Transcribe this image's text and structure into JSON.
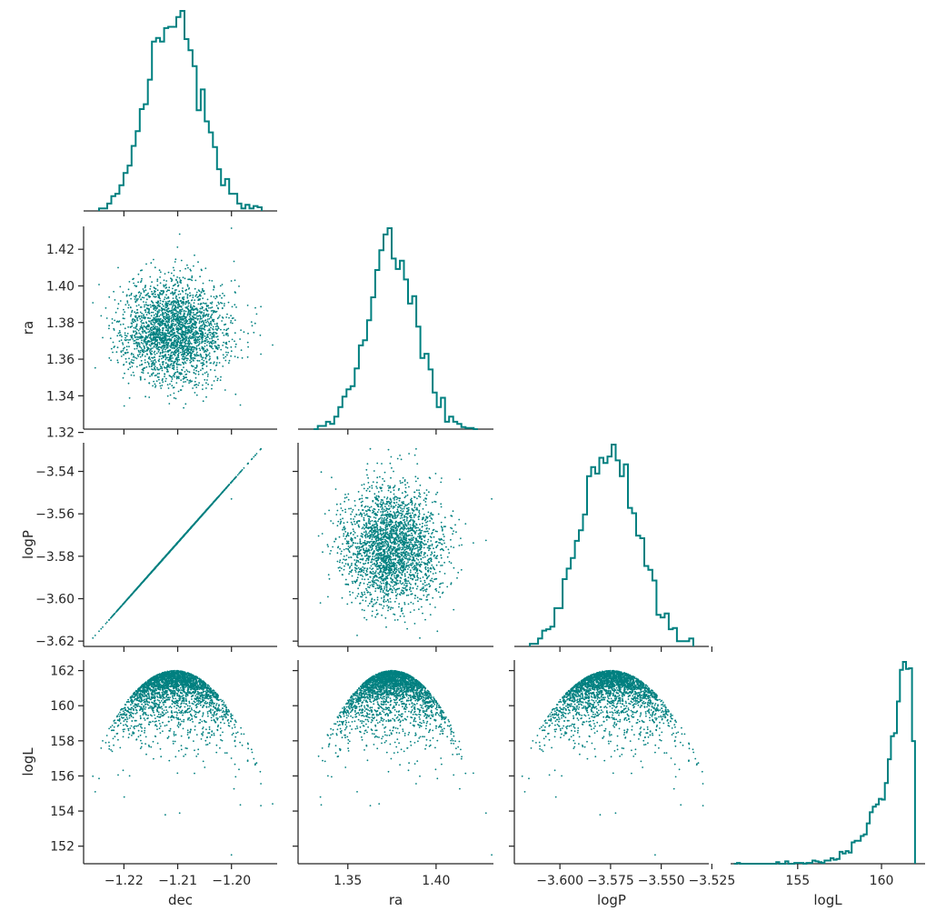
{
  "chart_data": {
    "type": "scatter",
    "style": "corner pair plot",
    "variables": [
      "dec",
      "ra",
      "logP",
      "logL"
    ],
    "color": "#008080",
    "n_samples_approx": 5000,
    "marginals": {
      "dec": {
        "mean": -1.2105,
        "std": 0.0048,
        "range": [
          -1.2275,
          -1.1915
        ]
      },
      "ra": {
        "mean": 1.375,
        "std": 0.0135,
        "range": [
          1.3218,
          1.4325
        ]
      },
      "logP": {
        "mean": -3.575,
        "std": 0.0137,
        "range": [
          -3.6225,
          -3.5265
        ]
      },
      "logL": {
        "max": 162.0,
        "min_outlier": 151.5,
        "shape": "left-skewed, sharp edge at max"
      }
    },
    "relations": [
      {
        "x": "dec",
        "y": "logP",
        "kind": "linear",
        "note": "perfect positive correlation"
      },
      {
        "x": "dec",
        "y": "logL",
        "kind": "parabolic envelope"
      },
      {
        "x": "ra",
        "y": "logL",
        "kind": "parabolic envelope"
      },
      {
        "x": "logP",
        "y": "logL",
        "kind": "parabolic envelope"
      }
    ],
    "axes": {
      "dec": {
        "label": "dec",
        "lim": [
          -1.2275,
          -1.1915
        ],
        "ticks": [
          -1.22,
          -1.21,
          -1.2
        ],
        "tick_labels": [
          "−1.22",
          "−1.21",
          "−1.20"
        ]
      },
      "ra": {
        "label": "ra",
        "lim": [
          1.3218,
          1.4325
        ],
        "ticks": [
          1.35,
          1.4
        ],
        "tick_labels": [
          "1.35",
          "1.40"
        ],
        "row_ticks": [
          1.32,
          1.34,
          1.36,
          1.38,
          1.4,
          1.42
        ],
        "row_tick_labels": [
          "1.32",
          "1.34",
          "1.36",
          "1.38",
          "1.40",
          "1.42"
        ]
      },
      "logP": {
        "label": "logP",
        "lim": [
          -3.6225,
          -3.5265
        ],
        "ticks": [
          -3.6,
          -3.575,
          -3.55,
          -3.525
        ],
        "tick_labels": [
          "−3.600",
          "−3.575",
          "−3.550",
          "−3.525"
        ],
        "row_ticks": [
          -3.62,
          -3.6,
          -3.58,
          -3.56,
          -3.54
        ],
        "row_tick_labels": [
          "−3.62",
          "−3.60",
          "−3.58",
          "−3.56",
          "−3.54"
        ]
      },
      "logL": {
        "label": "logL",
        "lim": [
          151.0,
          162.6
        ],
        "ticks": [
          155,
          160
        ],
        "tick_labels": [
          "155",
          "160"
        ],
        "row_ticks": [
          152,
          154,
          156,
          158,
          160,
          162
        ],
        "row_tick_labels": [
          "152",
          "154",
          "156",
          "158",
          "160",
          "162"
        ]
      }
    },
    "grid": false,
    "legend": "none"
  }
}
